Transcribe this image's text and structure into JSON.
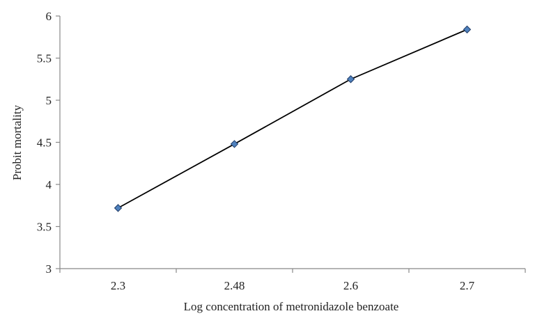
{
  "chart_data": {
    "type": "line",
    "categories": [
      "2.3",
      "2.48",
      "2.6",
      "2.7"
    ],
    "series": [
      {
        "values": [
          3.72,
          4.48,
          5.25,
          5.84
        ]
      }
    ],
    "xlabel": "Log concentration of metronidazole benzoate",
    "ylabel": "Probit mortality",
    "ylim": [
      3,
      6
    ],
    "yticks": [
      "3",
      "3.5",
      "4",
      "4.5",
      "5",
      "5.5",
      "6"
    ],
    "grid": false,
    "legend": "none",
    "colors": {
      "line": "#000000",
      "marker_fill": "#4f81bd",
      "marker_stroke": "#1f3b66",
      "axis": "#888888"
    }
  }
}
